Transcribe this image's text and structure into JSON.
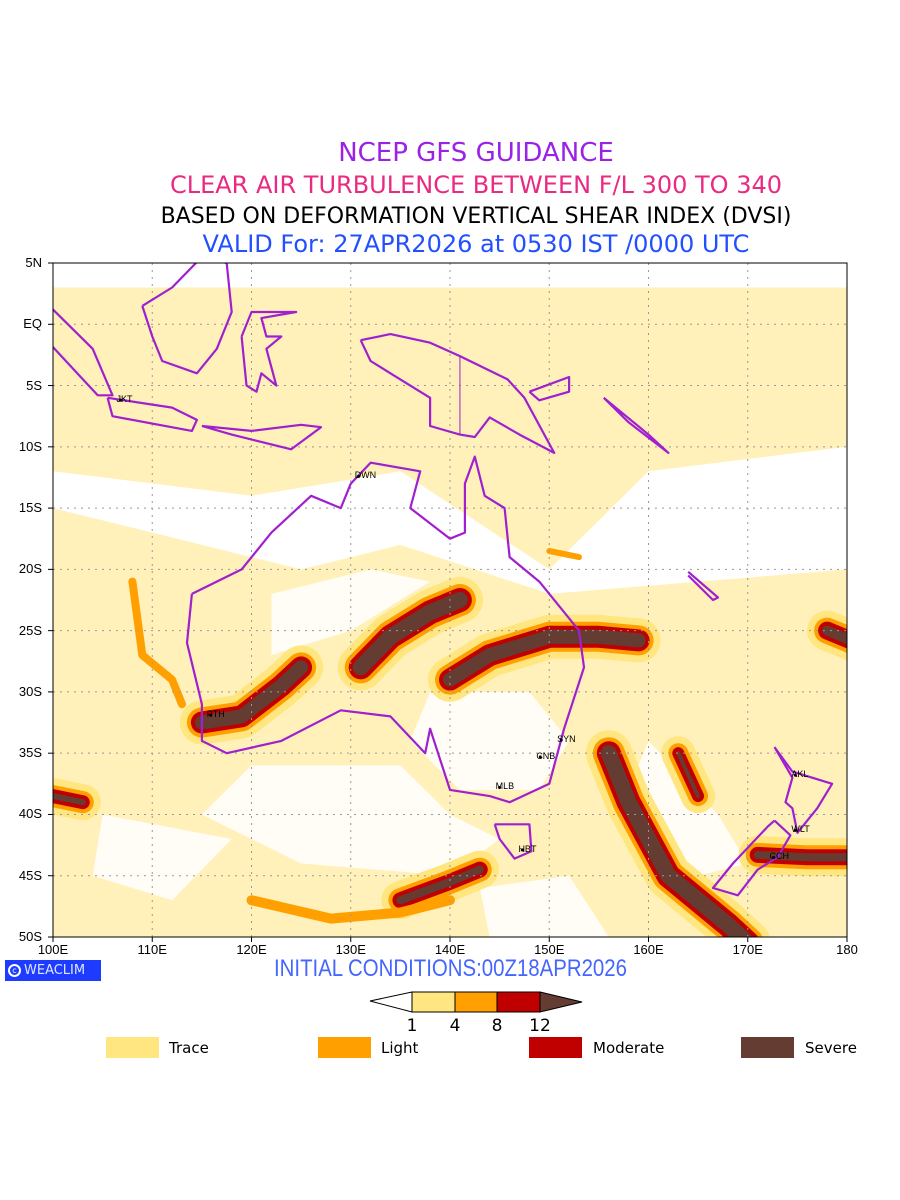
{
  "header": {
    "line1": "NCEP GFS GUIDANCE",
    "line2": "CLEAR AIR TURBULENCE BETWEEN F/L 300 TO 340",
    "line3": "BASED ON DEFORMATION VERTICAL SHEAR INDEX (DVSI)",
    "line4": "VALID For: 27APR2026 at 0530 IST /0000 UTC"
  },
  "axes": {
    "lat_labels": [
      "5N",
      "EQ",
      "5S",
      "10S",
      "15S",
      "20S",
      "25S",
      "30S",
      "35S",
      "40S",
      "45S",
      "50S"
    ],
    "lon_labels": [
      "100E",
      "110E",
      "120E",
      "130E",
      "140E",
      "150E",
      "160E",
      "170E",
      "180"
    ]
  },
  "cities": [
    {
      "label": "JKT",
      "lon": 106.8,
      "lat": -6.2
    },
    {
      "label": "DWN",
      "lon": 130.8,
      "lat": -12.4
    },
    {
      "label": "PTH",
      "lon": 115.9,
      "lat": -31.9
    },
    {
      "label": "SYN",
      "lon": 151.2,
      "lat": -33.9
    },
    {
      "label": "CNB",
      "lon": 149.1,
      "lat": -35.3
    },
    {
      "label": "MLB",
      "lon": 145.0,
      "lat": -37.8
    },
    {
      "label": "HBT",
      "lon": 147.3,
      "lat": -42.9
    },
    {
      "label": "AKL",
      "lon": 174.8,
      "lat": -36.8
    },
    {
      "label": "WLT",
      "lon": 174.8,
      "lat": -41.3
    },
    {
      "label": "CCH",
      "lon": 172.6,
      "lat": -43.5
    }
  ],
  "footer": {
    "brand": "WEACLIM",
    "initial": "INITIAL CONDITIONS:00Z18APR2026"
  },
  "colorbar": {
    "ticks": [
      "1",
      "4",
      "8",
      "12"
    ]
  },
  "legend": [
    {
      "label": "Trace",
      "color": "#ffe680"
    },
    {
      "label": "Light",
      "color": "#ffa000"
    },
    {
      "label": "Moderate",
      "color": "#c00000"
    },
    {
      "label": "Severe",
      "color": "#643c32"
    }
  ],
  "colors": {
    "coast": "#a020d0",
    "grid": "#aaaaaa"
  }
}
